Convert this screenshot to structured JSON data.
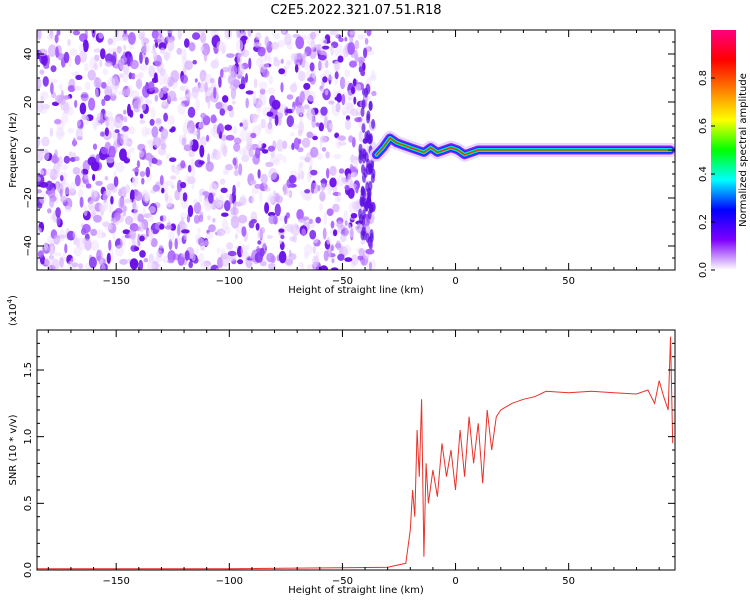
{
  "title": "C2E5.2022.321.07.51.R18",
  "chart_data": [
    {
      "type": "heatmap",
      "panel": "spectrogram",
      "xlabel": "Height of straight line (km)",
      "ylabel": "Frequency (Hz)",
      "xlim": [
        -185,
        97
      ],
      "ylim": [
        -50,
        50
      ],
      "x_ticks": [
        -150,
        -100,
        -50,
        0,
        50
      ],
      "y_ticks": [
        -40,
        -20,
        0,
        20,
        40
      ],
      "noise_region_x": [
        -185,
        -36
      ],
      "signal_trace": {
        "x": [
          -35,
          -32,
          -29,
          -26,
          -23,
          -20,
          -17,
          -14,
          -11,
          -8,
          -5,
          -2,
          1,
          4,
          7,
          10,
          13,
          16,
          20,
          30,
          40,
          60,
          80,
          95
        ],
        "freq": [
          -2,
          1,
          5,
          3,
          2,
          1,
          0,
          -1,
          1,
          -1,
          0,
          1,
          0,
          -2,
          -1,
          0,
          0,
          0,
          0,
          0,
          0,
          0,
          0,
          0
        ]
      },
      "colorbar": {
        "label": "Normalized spectral amplitude",
        "range": [
          0,
          1
        ],
        "ticks": [
          0.0,
          0.2,
          0.4,
          0.6,
          0.8
        ],
        "colors": [
          "#ffffff",
          "#7f00ff",
          "#0000ff",
          "#00ffff",
          "#00ff00",
          "#ffff00",
          "#ff7f00",
          "#ff0000",
          "#ff0080"
        ]
      }
    },
    {
      "type": "line",
      "panel": "snr",
      "xlabel": "Height of straight line (km)",
      "ylabel": "SNR (10 * v/v)",
      "y_multiplier": "(x10",
      "y_multiplier_exp": "4",
      "y_multiplier_close": ")",
      "xlim": [
        -185,
        97
      ],
      "ylim": [
        0,
        1.8
      ],
      "x_ticks": [
        -150,
        -100,
        -50,
        0,
        50
      ],
      "y_ticks": [
        0.0,
        0.5,
        1.0,
        1.5
      ],
      "color": "#e8322a",
      "series": [
        {
          "x": [
            -185,
            -100,
            -30,
            -22,
            -20,
            -19,
            -18,
            -17,
            -16,
            -15,
            -14,
            -13,
            -12,
            -10,
            -8,
            -6,
            -4,
            -2,
            0,
            2,
            4,
            6,
            8,
            10,
            12,
            14,
            16,
            18,
            20,
            25,
            30,
            35,
            40,
            50,
            60,
            70,
            80,
            85,
            88,
            90,
            92,
            94,
            95,
            96
          ],
          "y": [
            0.01,
            0.01,
            0.02,
            0.05,
            0.3,
            0.6,
            0.4,
            1.05,
            0.7,
            1.28,
            0.1,
            0.8,
            0.5,
            0.75,
            0.55,
            0.95,
            0.7,
            0.9,
            0.6,
            1.05,
            0.7,
            1.15,
            0.8,
            1.1,
            0.65,
            1.2,
            0.9,
            1.15,
            1.2,
            1.25,
            1.28,
            1.3,
            1.34,
            1.33,
            1.34,
            1.33,
            1.32,
            1.35,
            1.25,
            1.42,
            1.3,
            1.2,
            1.75,
            0.95
          ]
        }
      ]
    }
  ]
}
